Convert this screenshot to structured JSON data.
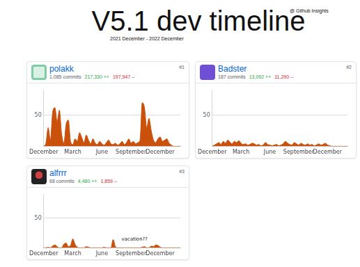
{
  "header": {
    "title": "V5.1 dev timeline",
    "source": "@ Github Insights",
    "subtitle": "2021 December - 2022 December"
  },
  "cards": [
    {
      "rank": "#1",
      "name": "polakk",
      "commits": "1,085 commits",
      "additions": "217,330 ++",
      "deletions": "197,947 --"
    },
    {
      "rank": "#2",
      "name": "Badster",
      "commits": "187 commits",
      "additions": "13,092 ++",
      "deletions": "11,290 --"
    },
    {
      "rank": "#3",
      "name": "alfrrr",
      "commits": "68 commits",
      "additions": "4,480 ++",
      "deletions": "1,859 --"
    }
  ],
  "chart_data": [
    {
      "type": "area",
      "color": "#c9510c",
      "grid": true,
      "ylim": [
        0,
        90
      ],
      "yticks": [
        50
      ],
      "categories": [
        "December",
        null,
        null,
        null,
        null,
        null,
        null,
        null,
        null,
        null,
        null,
        null,
        null,
        "March",
        null,
        null,
        null,
        null,
        null,
        null,
        null,
        null,
        null,
        null,
        null,
        null,
        "June",
        null,
        null,
        null,
        null,
        null,
        null,
        null,
        null,
        null,
        null,
        null,
        null,
        "September",
        null,
        null,
        null,
        null,
        null,
        null,
        null,
        null,
        null,
        null,
        null,
        null,
        "December",
        null,
        null,
        null,
        null,
        null,
        null,
        null,
        null,
        null
      ],
      "values": [
        0,
        5,
        30,
        10,
        55,
        62,
        40,
        58,
        20,
        5,
        35,
        42,
        8,
        3,
        12,
        8,
        22,
        14,
        6,
        18,
        10,
        4,
        12,
        5,
        3,
        8,
        4,
        2,
        6,
        10,
        4,
        3,
        5,
        2,
        4,
        8,
        3,
        6,
        12,
        5,
        8,
        4,
        6,
        10,
        70,
        62,
        30,
        45,
        25,
        10,
        6,
        12,
        15,
        8,
        10,
        12,
        5,
        2,
        0,
        0,
        0,
        0
      ]
    },
    {
      "type": "area",
      "color": "#c9510c",
      "grid": true,
      "ylim": [
        0,
        90
      ],
      "yticks": [
        50
      ],
      "categories": [
        "December",
        null,
        null,
        null,
        null,
        null,
        null,
        null,
        null,
        null,
        null,
        null,
        null,
        "March",
        null,
        null,
        null,
        null,
        null,
        null,
        null,
        null,
        null,
        null,
        null,
        null,
        "June",
        null,
        null,
        null,
        null,
        null,
        null,
        null,
        null,
        null,
        null,
        null,
        null,
        "September",
        null,
        null,
        null,
        null,
        null,
        null,
        null,
        null,
        null,
        null,
        null,
        null,
        "December",
        null,
        null,
        null,
        null,
        null,
        null,
        null,
        null,
        null
      ],
      "values": [
        0,
        2,
        4,
        6,
        3,
        8,
        5,
        10,
        7,
        4,
        8,
        6,
        9,
        5,
        3,
        4,
        2,
        3,
        5,
        4,
        2,
        3,
        1,
        2,
        6,
        3,
        2,
        1,
        2,
        3,
        1,
        2,
        4,
        8,
        5,
        3,
        2,
        6,
        4,
        2,
        5,
        3,
        2,
        4,
        2,
        3,
        1,
        2,
        4,
        2,
        3,
        5,
        2,
        1,
        0,
        0,
        0,
        0,
        0,
        0,
        0,
        0
      ]
    },
    {
      "type": "area",
      "color": "#c9510c",
      "grid": true,
      "ylim": [
        0,
        90
      ],
      "yticks": [
        50
      ],
      "annotations": [
        "vacation??"
      ],
      "categories": [
        "December",
        null,
        null,
        null,
        null,
        null,
        null,
        null,
        null,
        null,
        null,
        null,
        null,
        "March",
        null,
        null,
        null,
        null,
        null,
        null,
        null,
        null,
        null,
        null,
        null,
        null,
        "June",
        null,
        null,
        null,
        null,
        null,
        null,
        null,
        null,
        null,
        null,
        null,
        null,
        "September",
        null,
        null,
        null,
        null,
        null,
        null,
        null,
        null,
        null,
        null,
        null,
        null,
        "December",
        null,
        null,
        null,
        null,
        null,
        null,
        null,
        null,
        null
      ],
      "values": [
        0,
        0,
        1,
        0,
        3,
        5,
        2,
        0,
        0,
        6,
        8,
        2,
        4,
        15,
        6,
        1,
        0,
        0,
        0,
        2,
        1,
        0,
        0,
        0,
        0,
        0,
        0,
        1,
        0,
        0,
        0,
        14,
        2,
        0,
        0,
        0,
        0,
        0,
        0,
        0,
        0,
        0,
        0,
        0,
        1,
        2,
        0,
        0,
        3,
        2,
        5,
        4,
        1,
        0,
        0,
        0,
        0,
        0,
        0,
        0,
        0,
        0
      ]
    }
  ]
}
